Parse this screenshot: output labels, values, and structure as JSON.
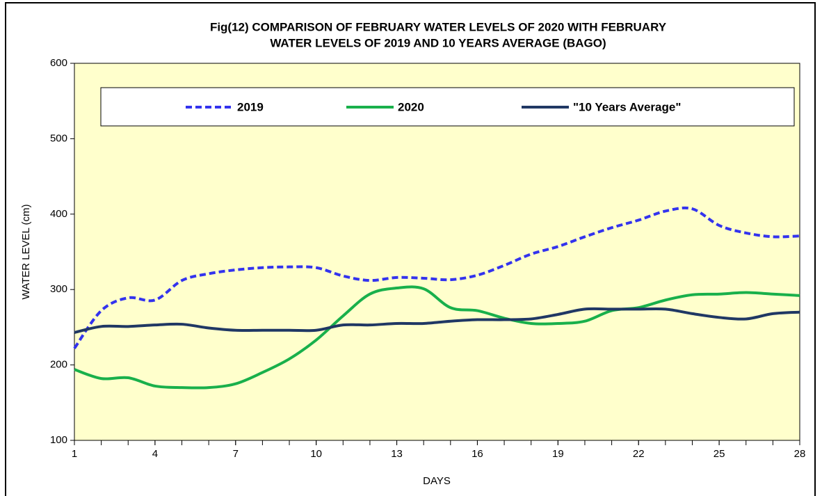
{
  "chart_data": {
    "type": "line",
    "title": [
      "Fig(12)  COMPARISON  OF FEBRUARY WATER  LEVELS OF 2020 WITH  FEBRUARY",
      "WATER  LEVELS OF 2019  AND 10 YEARS AVERAGE   (BAGO)"
    ],
    "x_label": "DAYS",
    "y_label": "WATER LEVEL (cm)",
    "x": [
      1,
      2,
      3,
      4,
      5,
      6,
      7,
      8,
      9,
      10,
      11,
      12,
      13,
      14,
      15,
      16,
      17,
      18,
      19,
      20,
      21,
      22,
      23,
      24,
      25,
      26,
      27,
      28
    ],
    "series": [
      {
        "name": "2019",
        "color": "#3333ee",
        "dashed": true,
        "values": [
          222,
          272,
          289,
          286,
          312,
          321,
          326,
          329,
          330,
          329,
          318,
          312,
          316,
          315,
          313,
          319,
          332,
          347,
          357,
          370,
          382,
          392,
          404,
          407,
          385,
          375,
          370,
          371
        ]
      },
      {
        "name": "2020",
        "color": "#19b04b",
        "dashed": false,
        "values": [
          194,
          182,
          183,
          172,
          170,
          170,
          175,
          190,
          208,
          233,
          265,
          294,
          302,
          301,
          276,
          272,
          262,
          255,
          255,
          258,
          272,
          276,
          286,
          293,
          294,
          296,
          294,
          292
        ]
      },
      {
        "name": "\"10 Years Average\"",
        "color": "#203864",
        "dashed": false,
        "values": [
          243,
          251,
          251,
          253,
          254,
          249,
          246,
          246,
          246,
          246,
          253,
          253,
          255,
          255,
          258,
          260,
          260,
          261,
          267,
          274,
          274,
          274,
          274,
          268,
          263,
          261,
          268,
          270
        ]
      }
    ],
    "xlim": [
      1,
      28
    ],
    "xticks": [
      1,
      4,
      7,
      10,
      13,
      16,
      19,
      22,
      25,
      28
    ],
    "ylim": [
      100,
      600
    ],
    "yticks": [
      100,
      200,
      300,
      400,
      500,
      600
    ],
    "legend": "top"
  }
}
